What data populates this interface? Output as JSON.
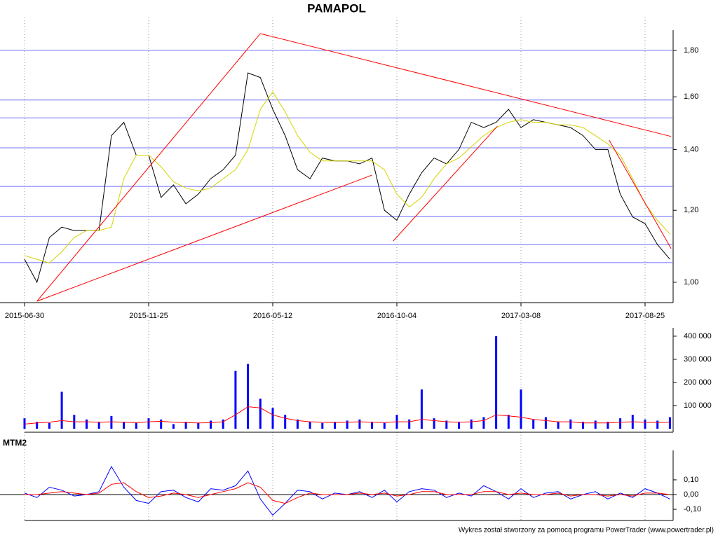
{
  "chart_data": [
    {
      "type": "line",
      "title": "PAMAPOL",
      "categories": [
        "2015-06-30",
        null,
        null,
        null,
        null,
        null,
        null,
        null,
        null,
        null,
        "2015-11-25",
        null,
        null,
        null,
        null,
        null,
        null,
        null,
        null,
        null,
        "2016-05-12",
        null,
        null,
        null,
        null,
        null,
        null,
        null,
        null,
        null,
        "2016-10-04",
        null,
        null,
        null,
        null,
        null,
        null,
        null,
        null,
        null,
        "2017-03-08",
        null,
        null,
        null,
        null,
        null,
        null,
        null,
        null,
        null,
        "2017-08-25",
        null,
        null
      ],
      "series": [
        {
          "color": "#000000",
          "values": [
            1.06,
            1.0,
            1.12,
            1.15,
            1.14,
            1.14,
            1.14,
            1.45,
            1.5,
            1.38,
            1.38,
            1.24,
            1.28,
            1.22,
            1.25,
            1.3,
            1.33,
            1.38,
            1.7,
            1.68,
            1.55,
            1.45,
            1.33,
            1.3,
            1.37,
            1.36,
            1.36,
            1.35,
            1.37,
            1.2,
            1.17,
            1.25,
            1.32,
            1.37,
            1.35,
            1.4,
            1.5,
            1.48,
            1.5,
            1.55,
            1.48,
            1.51,
            1.5,
            1.49,
            1.48,
            1.45,
            1.4,
            1.4,
            1.25,
            1.18,
            1.16,
            1.1,
            1.06
          ]
        },
        {
          "color": "#d4d400",
          "values": [
            1.07,
            1.06,
            1.05,
            1.08,
            1.12,
            1.14,
            1.14,
            1.15,
            1.3,
            1.38,
            1.38,
            1.34,
            1.29,
            1.27,
            1.26,
            1.27,
            1.3,
            1.33,
            1.4,
            1.55,
            1.62,
            1.54,
            1.45,
            1.39,
            1.36,
            1.36,
            1.36,
            1.36,
            1.36,
            1.33,
            1.25,
            1.21,
            1.24,
            1.3,
            1.35,
            1.37,
            1.41,
            1.45,
            1.48,
            1.5,
            1.51,
            1.5,
            1.5,
            1.49,
            1.49,
            1.48,
            1.45,
            1.42,
            1.38,
            1.3,
            1.22,
            1.17,
            1.13
          ]
        }
      ],
      "ylim": [
        0.953,
        1.888
      ],
      "log_scale": true,
      "yticks": [
        {
          "value": 1.0,
          "label": "1,00"
        },
        {
          "value": 1.2,
          "label": "1,20"
        },
        {
          "value": 1.4,
          "label": "1,40"
        },
        {
          "value": 1.6,
          "label": "1,60"
        },
        {
          "value": 1.8,
          "label": "1,80"
        }
      ],
      "levels": {
        "color": "#7070ff",
        "values": [
          1.8,
          1.587,
          1.517,
          1.406,
          1.275,
          1.181,
          1.1,
          1.051
        ]
      },
      "trendlines": {
        "color": "#ff0000",
        "lines": [
          {
            "x": [
              1,
              19
            ],
            "y": [
              0.953,
              1.878
            ]
          },
          {
            "x": [
              19,
              52.1
            ],
            "y": [
              1.878,
              1.447
            ]
          },
          {
            "x": [
              1,
              28
            ],
            "y": [
              0.953,
              1.312
            ]
          },
          {
            "x": [
              29.7,
              38.1
            ],
            "y": [
              1.11,
              1.485
            ]
          },
          {
            "x": [
              47.1,
              52.1
            ],
            "y": [
              1.434,
              1.089
            ]
          }
        ]
      }
    },
    {
      "type": "bar",
      "series": [
        {
          "type": "bar",
          "color": "#0000ff",
          "values": [
            45000,
            30000,
            25000,
            160000,
            60000,
            40000,
            30000,
            55000,
            30000,
            25000,
            45000,
            40000,
            20000,
            30000,
            25000,
            35000,
            40000,
            250000,
            280000,
            130000,
            90000,
            60000,
            40000,
            30000,
            25000,
            30000,
            35000,
            40000,
            30000,
            25000,
            60000,
            40000,
            170000,
            45000,
            35000,
            30000,
            40000,
            50000,
            400000,
            60000,
            170000,
            40000,
            50000,
            30000,
            40000,
            30000,
            35000,
            30000,
            45000,
            60000,
            40000,
            35000,
            50000
          ]
        },
        {
          "type": "line",
          "color": "#ff0000",
          "values": [
            20000,
            25000,
            28000,
            35000,
            30000,
            30000,
            28000,
            30000,
            28000,
            26000,
            30000,
            32000,
            28000,
            26000,
            25000,
            26000,
            30000,
            60000,
            95000,
            90000,
            60000,
            45000,
            35000,
            30000,
            28000,
            27000,
            28000,
            30000,
            28000,
            27000,
            30000,
            30000,
            40000,
            35000,
            30000,
            28000,
            30000,
            35000,
            60000,
            55000,
            50000,
            40000,
            35000,
            30000,
            30000,
            25000,
            25000,
            25000,
            28000,
            30000,
            28000,
            27000,
            28000
          ]
        }
      ],
      "ylim": [
        0,
        430000
      ],
      "yticks": [
        {
          "value": 100000,
          "label": "100 000"
        },
        {
          "value": 200000,
          "label": "200 000"
        },
        {
          "value": 300000,
          "label": "300 000"
        },
        {
          "value": 400000,
          "label": "400 000"
        }
      ]
    },
    {
      "type": "line",
      "title": "MTM2",
      "zero_line": true,
      "series": [
        {
          "color": "#0000ff",
          "values": [
            0.01,
            -0.02,
            0.05,
            0.03,
            -0.01,
            0.0,
            0.02,
            0.19,
            0.05,
            -0.04,
            -0.06,
            0.02,
            0.03,
            -0.02,
            -0.05,
            0.04,
            0.03,
            0.06,
            0.16,
            -0.03,
            -0.14,
            -0.06,
            0.03,
            0.02,
            -0.03,
            0.01,
            0.0,
            0.02,
            -0.02,
            0.03,
            -0.05,
            0.02,
            0.04,
            0.03,
            -0.02,
            0.01,
            -0.01,
            0.06,
            0.02,
            -0.03,
            0.04,
            -0.02,
            0.01,
            0.02,
            -0.03,
            0.0,
            0.02,
            -0.03,
            0.01,
            -0.02,
            0.04,
            0.01,
            -0.03
          ]
        },
        {
          "color": "#ff0000",
          "values": [
            0.0,
            0.0,
            0.01,
            0.02,
            0.01,
            0.0,
            0.01,
            0.07,
            0.08,
            0.02,
            -0.02,
            -0.01,
            0.01,
            0.0,
            -0.02,
            0.0,
            0.02,
            0.04,
            0.08,
            0.05,
            -0.04,
            -0.06,
            -0.02,
            0.01,
            0.0,
            0.0,
            0.0,
            0.01,
            0.0,
            0.01,
            -0.01,
            0.0,
            0.02,
            0.02,
            0.0,
            0.0,
            0.0,
            0.02,
            0.02,
            0.0,
            0.01,
            0.0,
            0.0,
            0.01,
            -0.01,
            0.0,
            0.0,
            -0.01,
            0.0,
            -0.01,
            0.01,
            0.01,
            0.0
          ]
        }
      ],
      "ylim": [
        -0.176,
        0.29
      ],
      "yticks": [
        {
          "value": -0.1,
          "label": "-0,10"
        },
        {
          "value": 0,
          "label": "0,00"
        },
        {
          "value": 0.1,
          "label": "0,10"
        }
      ]
    }
  ],
  "footer": "Wykres został stworzony za pomocą programu PowerTrader (www.powertrader.pl)"
}
